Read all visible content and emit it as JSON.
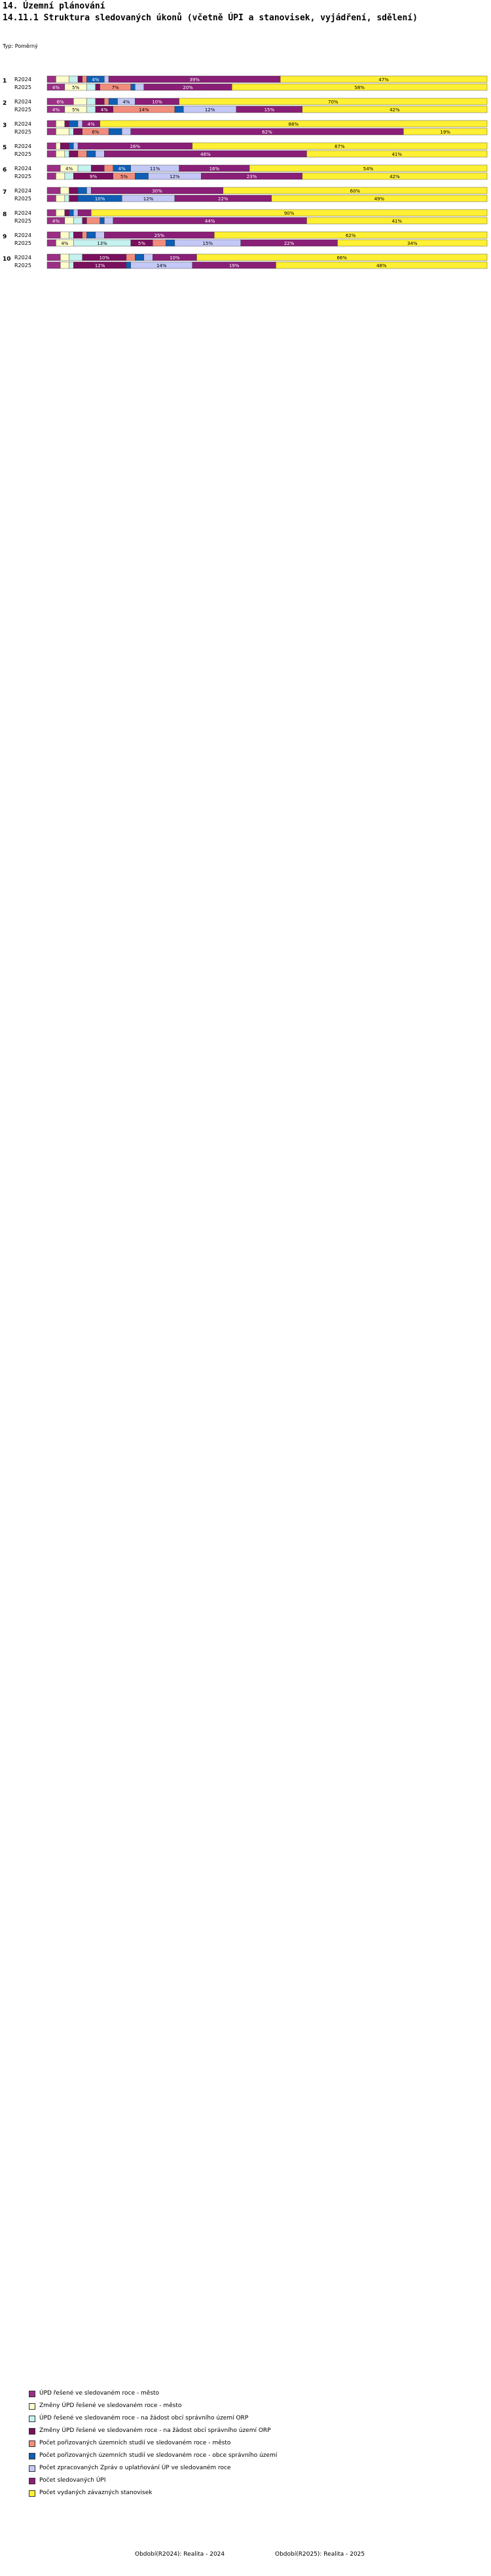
{
  "header": {
    "title": "14. Územní plánování",
    "subtitle": "14.11.1 Struktura sledovaných úkonů (včetně ÚPI a stanovisek, vyjádření, sdělení)",
    "typ": "Typ: Poměrný"
  },
  "footer": {
    "left": "Období(R2024): Realita - 2024",
    "right": "Období(R2025): Realita - 2025"
  },
  "chart_data": {
    "type": "stacked-bar-horizontal",
    "orientation": "horizontal",
    "xlim": [
      0,
      100
    ],
    "series": [
      {
        "name": "ÚPD řešené ve sledovaném roce - město",
        "color": "#9b2f86"
      },
      {
        "name": "Změny ÚPD řešené ve sledovaném roce - město",
        "color": "#ffffcc"
      },
      {
        "name": "ÚPD řešené ve sledovaném roce - na žádost obcí správního území ORP",
        "color": "#c5f1ef"
      },
      {
        "name": "Změny ÚPD řešené ve sledovaném roce - na žádost obcí správního území ORP",
        "color": "#7a0f5d"
      },
      {
        "name": "Počet pořizovaných územních studií ve sledovaném roce - město",
        "color": "#f28d7d"
      },
      {
        "name": "Počet pořizovaných územních studií ve sledovaném roce - obce správního území",
        "color": "#0f5fb5"
      },
      {
        "name": "Počet zpracovaných Zpráv o uplatňování ÚP ve sledovaném roce",
        "color": "#c3c8f6"
      },
      {
        "name": "Počet sledovaných ÚPI",
        "color": "#8a1f77"
      },
      {
        "name": "Počet vydaných závazných stanovisek",
        "color": "#fff034"
      }
    ],
    "groups": [
      {
        "id": "1",
        "rows": [
          {
            "label": "R2024",
            "values": [
              2,
              3,
              2,
              1,
              1,
              4,
              1,
              39,
              47
            ]
          },
          {
            "label": "R2025",
            "values": [
              4,
              5,
              2,
              1,
              7,
              1,
              2,
              20,
              58
            ]
          }
        ]
      },
      {
        "id": "2",
        "rows": [
          {
            "label": "R2024",
            "values": [
              6,
              3,
              2,
              2,
              1,
              2,
              4,
              10,
              70
            ]
          },
          {
            "label": "R2025",
            "values": [
              4,
              5,
              2,
              4,
              14,
              2,
              12,
              15,
              42
            ]
          }
        ]
      },
      {
        "id": "3",
        "rows": [
          {
            "label": "R2024",
            "values": [
              2,
              2,
              0,
              1,
              0,
              2,
              1,
              4,
              88
            ]
          },
          {
            "label": "R2025",
            "values": [
              2,
              3,
              1,
              2,
              6,
              3,
              2,
              62,
              19
            ]
          }
        ]
      },
      {
        "id": "5",
        "rows": [
          {
            "label": "R2024",
            "values": [
              2,
              1,
              0,
              2,
              0,
              1,
              1,
              26,
              67
            ]
          },
          {
            "label": "R2025",
            "values": [
              2,
              2,
              1,
              2,
              2,
              2,
              2,
              46,
              41
            ]
          }
        ]
      },
      {
        "id": "6",
        "rows": [
          {
            "label": "R2024",
            "values": [
              3,
              4,
              3,
              3,
              2,
              4,
              11,
              16,
              54
            ]
          },
          {
            "label": "R2025",
            "values": [
              2,
              2,
              2,
              9,
              5,
              3,
              12,
              23,
              42
            ]
          }
        ]
      },
      {
        "id": "7",
        "rows": [
          {
            "label": "R2024",
            "values": [
              3,
              2,
              0,
              2,
              0,
              2,
              1,
              30,
              60
            ]
          },
          {
            "label": "R2025",
            "values": [
              2,
              2,
              1,
              2,
              0,
              10,
              12,
              22,
              49
            ]
          }
        ]
      },
      {
        "id": "8",
        "rows": [
          {
            "label": "R2024",
            "values": [
              2,
              2,
              0,
              1,
              0,
              1,
              1,
              3,
              90
            ]
          },
          {
            "label": "R2025",
            "values": [
              4,
              2,
              2,
              1,
              3,
              1,
              2,
              44,
              41
            ]
          }
        ]
      },
      {
        "id": "9",
        "rows": [
          {
            "label": "R2024",
            "values": [
              3,
              2,
              1,
              2,
              1,
              2,
              2,
              25,
              62
            ]
          },
          {
            "label": "R2025",
            "values": [
              2,
              4,
              13,
              5,
              3,
              2,
              15,
              22,
              34
            ]
          }
        ]
      },
      {
        "id": "10",
        "rows": [
          {
            "label": "R2024",
            "values": [
              3,
              2,
              3,
              10,
              2,
              2,
              2,
              10,
              66
            ]
          },
          {
            "label": "R2025",
            "values": [
              3,
              2,
              1,
              12,
              0,
              1,
              14,
              19,
              48
            ]
          }
        ]
      }
    ]
  },
  "legend": {
    "items": [
      {
        "label": "ÚPD řešené ve sledovaném roce - město",
        "color": "#9b2f86"
      },
      {
        "label": "Změny ÚPD řešené ve sledovaném roce - město",
        "color": "#ffffcc"
      },
      {
        "label": "ÚPD řešené ve sledovaném roce - na žádost obcí správního území ORP",
        "color": "#c5f1ef"
      },
      {
        "label": "Změny ÚPD řešené ve sledovaném roce - na žádost obcí správního území ORP",
        "color": "#7a0f5d"
      },
      {
        "label": "Počet pořizovaných územních studií ve sledovaném roce - město",
        "color": "#f28d7d"
      },
      {
        "label": "Počet pořizovaných územních studií ve sledovaném roce - obce správního území",
        "color": "#0f5fb5"
      },
      {
        "label": "Počet zpracovaných Zpráv o uplatňování ÚP ve sledovaném roce",
        "color": "#c3c8f6"
      },
      {
        "label": "Počet sledovaných ÚPI",
        "color": "#8a1f77"
      },
      {
        "label": "Počet vydaných závazných stanovisek",
        "color": "#fff034"
      }
    ]
  }
}
